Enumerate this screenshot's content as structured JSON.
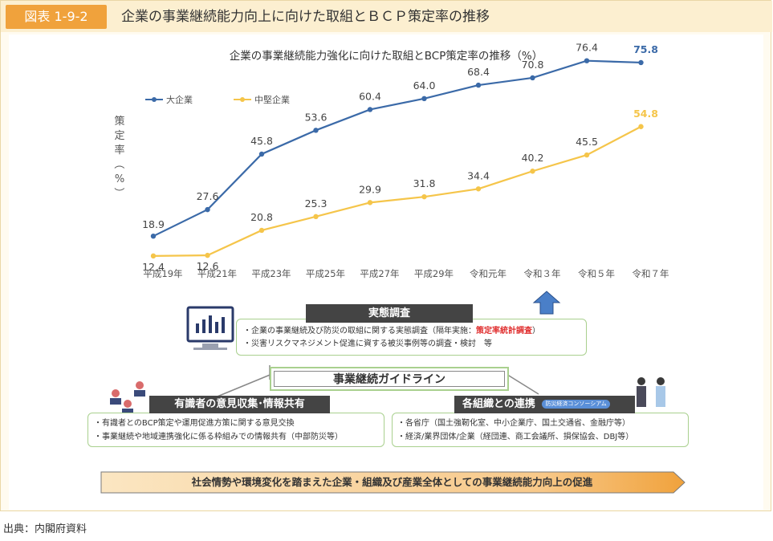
{
  "header": {
    "badge": "図表 1-9-2",
    "title": "企業の事業継続能力向上に向けた取組とＢＣＰ策定率の推移"
  },
  "chart_data": {
    "type": "line",
    "title": "企業の事業継続能力強化に向けた取組とBCP策定率の推移（%）",
    "ylabel": "策定率（%）",
    "categories": [
      "平成19年",
      "平成21年",
      "平成23年",
      "平成25年",
      "平成27年",
      "平成29年",
      "令和元年",
      "令和３年",
      "令和５年",
      "令和７年"
    ],
    "series": [
      {
        "name": "大企業",
        "color": "#3b6aa8",
        "values": [
          18.9,
          27.6,
          45.8,
          53.6,
          60.4,
          64.0,
          68.4,
          70.8,
          76.4,
          75.8
        ],
        "labels": [
          "18.9",
          "27.6",
          "45.8",
          "53.6",
          "60.4",
          "64.0",
          "68.4",
          "70.8",
          "76.4",
          "75.8"
        ]
      },
      {
        "name": "中堅企業",
        "color": "#f5c54a",
        "values": [
          12.4,
          12.6,
          20.8,
          25.3,
          29.9,
          31.8,
          34.4,
          40.2,
          45.5,
          54.8
        ],
        "labels": [
          "12.4",
          "12.6",
          "20.8",
          "25.3",
          "29.9",
          "31.8",
          "34.4",
          "40.2",
          "45.5",
          "54.8"
        ]
      }
    ],
    "ylim": [
      0,
      85
    ],
    "legend": "top-left"
  },
  "survey": {
    "label": "実態調査",
    "bullet1_pre": "・企業の事業継続及び防災の取組に関する実態調査（隔年実施：",
    "bullet1_red": "策定率統計調査",
    "bullet1_post": "）",
    "bullet2": "・災害リスクマネジメント促進に資する被災事例等の調査・検討　等"
  },
  "guideline": {
    "label": "事業継続ガイドライン"
  },
  "experts": {
    "label": "有識者の意見収集･情報共有",
    "bullet1": "・有識者とのBCP策定や運用促進方策に関する意見交換",
    "bullet2": "・事業継続や地域連携強化に係る枠組みでの情報共有（中部防災等）"
  },
  "collab": {
    "label": "各組織との連携",
    "tag": "防災経済コンソーシアム",
    "bullet1": "・各省庁（国土強靭化室、中小企業庁、国土交通省、金融庁等）",
    "bullet2": "・経済/業界団体/企業（経団連、商工会議所、損保協会、DBJ等）"
  },
  "banner": {
    "text": "社会情勢や環境変化を踏まえた企業・組織及び産業全体としての事業継続能力向上の促進"
  },
  "source": "出典：内閣府資料"
}
